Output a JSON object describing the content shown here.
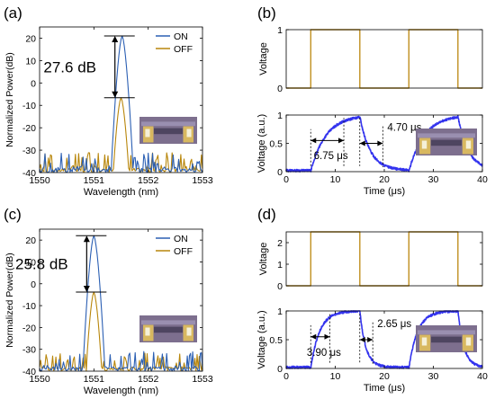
{
  "panels": [
    {
      "id": "a",
      "label": "(a)"
    },
    {
      "id": "b",
      "label": "(b)"
    },
    {
      "id": "c",
      "label": "(c)"
    },
    {
      "id": "d",
      "label": "(d)"
    }
  ],
  "colors": {
    "on": "#2b5fb3",
    "off": "#b8860b",
    "voltage_trace": "#3333ee",
    "drive": "#c09020"
  },
  "chart_data": [
    {
      "panel": "a",
      "type": "line",
      "xlabel": "Wavelength (nm)",
      "ylabel": "Normalized Power(dB)",
      "xlim": [
        1550,
        1553
      ],
      "ylim": [
        -40,
        25
      ],
      "xticks": [
        "1550",
        "1551",
        "1552",
        "1553"
      ],
      "yticks": [
        "-40",
        "-30",
        "-20",
        "-10",
        "0",
        "10",
        "20"
      ],
      "legend": [
        "ON",
        "OFF"
      ],
      "legend_position": "top-right",
      "annotation": "27.6 dB",
      "series": [
        {
          "name": "ON",
          "peak_x": 1551.52,
          "peak_y": 21.0
        },
        {
          "name": "OFF",
          "peak_x": 1551.5,
          "peak_y": -6.6
        }
      ],
      "noise_floor": -40
    },
    {
      "panel": "b-top",
      "type": "line",
      "ylabel": "Voltage",
      "xlim": [
        0,
        40
      ],
      "ylim": [
        0,
        1
      ],
      "yticks": [
        "0",
        "1"
      ],
      "series": [
        {
          "x": [
            0,
            5,
            5,
            15,
            15,
            25,
            25,
            35,
            35,
            40
          ],
          "y": [
            0,
            0,
            1,
            1,
            0,
            0,
            1,
            1,
            0,
            0
          ]
        }
      ]
    },
    {
      "panel": "b-bottom",
      "type": "line",
      "xlabel": "Time (μs)",
      "ylabel": "Voltage (a.u.)",
      "xlim": [
        0,
        40
      ],
      "ylim": [
        0,
        1
      ],
      "xticks": [
        "0",
        "10",
        "20",
        "30",
        "40"
      ],
      "yticks": [
        "0",
        "0.5",
        "1"
      ],
      "annotations": [
        "6.75 μs",
        "4.70 μs"
      ],
      "rise_start": 5,
      "rise_time": 6.75,
      "fall_start": 15,
      "fall_time": 4.7
    },
    {
      "panel": "c",
      "type": "line",
      "xlabel": "Wavelength (nm)",
      "ylabel": "Normalized Power(dB)",
      "xlim": [
        1550,
        1553
      ],
      "ylim": [
        -40,
        25
      ],
      "xticks": [
        "1550",
        "1551",
        "1552",
        "1553"
      ],
      "yticks": [
        "-40",
        "-30",
        "-20",
        "-10",
        "0",
        "10",
        "20"
      ],
      "legend": [
        "ON",
        "OFF"
      ],
      "legend_position": "top-right",
      "annotation": "25.8 dB",
      "series": [
        {
          "name": "ON",
          "peak_x": 1551.0,
          "peak_y": 22.0
        },
        {
          "name": "OFF",
          "peak_x": 1551.0,
          "peak_y": -3.8
        }
      ],
      "noise_floor": -40
    },
    {
      "panel": "d-top",
      "type": "line",
      "ylabel": "Voltage",
      "xlim": [
        0,
        40
      ],
      "ylim": [
        0,
        2.5
      ],
      "yticks": [
        "0",
        "1",
        "2"
      ],
      "series": [
        {
          "x": [
            0,
            5,
            5,
            15,
            15,
            25,
            25,
            35,
            35,
            40
          ],
          "y": [
            0,
            0,
            2.5,
            2.5,
            0,
            0,
            2.5,
            2.5,
            0,
            0
          ]
        }
      ]
    },
    {
      "panel": "d-bottom",
      "type": "line",
      "xlabel": "Time (μs)",
      "ylabel": "Voltage (a.u.)",
      "xlim": [
        0,
        40
      ],
      "ylim": [
        0,
        1
      ],
      "xticks": [
        "0",
        "10",
        "20",
        "30",
        "40"
      ],
      "yticks": [
        "0",
        "0.5",
        "1"
      ],
      "annotations": [
        "3.90 μs",
        "2.65 μs"
      ],
      "rise_start": 5,
      "rise_time": 3.9,
      "fall_start": 15,
      "fall_time": 2.65
    }
  ]
}
